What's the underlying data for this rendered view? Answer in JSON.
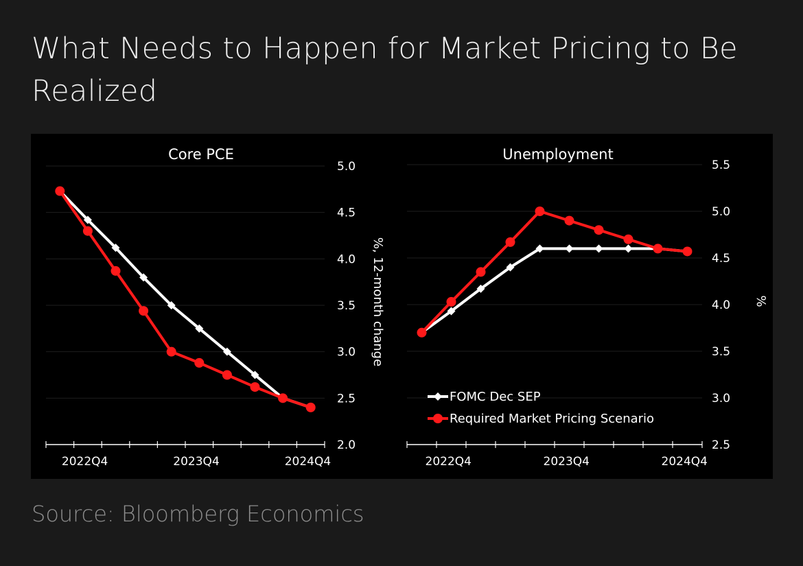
{
  "title": "What Needs to Happen for Market Pricing to Be Realized",
  "source": "Source: Bloomberg Economics",
  "colors": {
    "series_fomc": "#ffffff",
    "series_market": "#ff1a1a",
    "background": "#000000"
  },
  "chart_data": [
    {
      "type": "line",
      "title": "Core PCE",
      "ylabel": "%, 12-month change",
      "ylim": [
        2.0,
        5.0
      ],
      "yticks": [
        "2.0",
        "2.5",
        "3.0",
        "3.5",
        "4.0",
        "4.5",
        "5.0"
      ],
      "x_tick_labels": [
        "2022Q4",
        "2023Q4",
        "2024Q4"
      ],
      "grid": true,
      "series": [
        {
          "name": "FOMC Dec SEP",
          "x": [
            0.5,
            1.5,
            2.5,
            3.5,
            4.5,
            5.5,
            6.5,
            7.5,
            8.5,
            9.5
          ],
          "values": [
            4.73,
            4.42,
            4.12,
            3.8,
            3.5,
            3.25,
            3.0,
            2.75,
            2.5,
            2.4
          ]
        },
        {
          "name": "Required Market Pricing Scenario",
          "x": [
            0.5,
            1.5,
            2.5,
            3.5,
            4.5,
            5.5,
            6.5,
            7.5,
            8.5,
            9.5
          ],
          "values": [
            4.73,
            4.3,
            3.87,
            3.44,
            3.0,
            2.88,
            2.75,
            2.62,
            2.5,
            2.4
          ]
        }
      ]
    },
    {
      "type": "line",
      "title": "Unemployment",
      "ylabel": "%",
      "ylim": [
        2.5,
        5.5
      ],
      "yticks": [
        "2.5",
        "3.0",
        "3.5",
        "4.0",
        "4.5",
        "5.0",
        "5.5"
      ],
      "x_tick_labels": [
        "2022Q4",
        "2023Q4",
        "2024Q4"
      ],
      "grid": true,
      "legend_position": "bottom-left",
      "series": [
        {
          "name": "FOMC Dec SEP",
          "x": [
            0.5,
            1.5,
            2.5,
            3.5,
            4.5,
            5.5,
            6.5,
            7.5,
            8.5,
            9.5
          ],
          "values": [
            3.7,
            3.93,
            4.17,
            4.4,
            4.6,
            4.6,
            4.6,
            4.6,
            4.6,
            4.57
          ]
        },
        {
          "name": "Required Market Pricing Scenario",
          "x": [
            0.5,
            1.5,
            2.5,
            3.5,
            4.5,
            5.5,
            6.5,
            7.5,
            8.5,
            9.5
          ],
          "values": [
            3.7,
            4.03,
            4.35,
            4.67,
            5.0,
            4.9,
            4.8,
            4.7,
            4.6,
            4.57
          ]
        }
      ]
    }
  ]
}
